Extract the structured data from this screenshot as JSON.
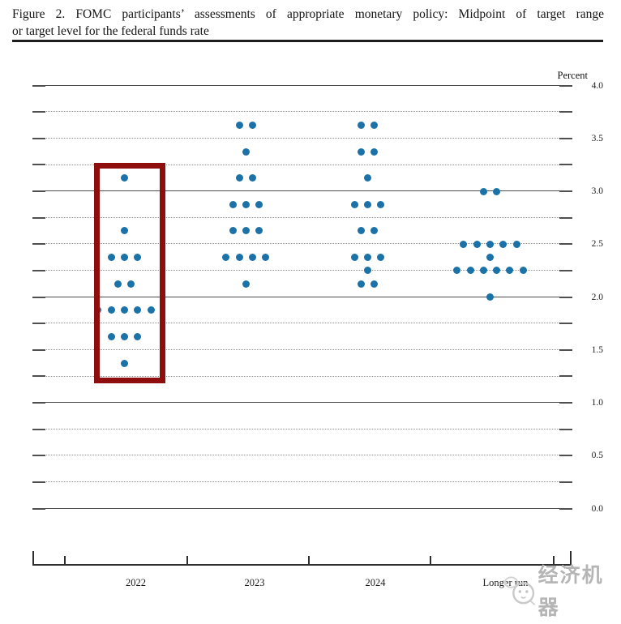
{
  "figure": {
    "title_line1": "Figure 2.  FOMC participants’ assessments of appropriate monetary policy:  Midpoint of target range",
    "title_line2": "or target level for the federal funds rate"
  },
  "axis": {
    "unit_label": "Percent",
    "ytick_labels": [
      "4.0",
      "3.5",
      "3.0",
      "2.5",
      "2.0",
      "1.5",
      "1.0",
      "0.5",
      "0.0"
    ],
    "x_labels": [
      "2022",
      "2023",
      "2024",
      "Longer run"
    ]
  },
  "watermark": {
    "text": "经济机器"
  },
  "chart_data": {
    "type": "scatter",
    "title": "Figure 2. FOMC participants’ assessments of appropriate monetary policy: Midpoint of target range or target level for the federal funds rate",
    "xlabel": "",
    "ylabel": "Percent",
    "ylim": [
      0.0,
      4.0
    ],
    "y_label_step": 0.5,
    "grid_step": 0.25,
    "grid": "on",
    "dot_color": "#1b72a8",
    "categories": [
      "2022",
      "2023",
      "2024",
      "Longer run"
    ],
    "series": [
      {
        "name": "2022",
        "dots": [
          {
            "rate": 3.125,
            "count": 1
          },
          {
            "rate": 2.625,
            "count": 1
          },
          {
            "rate": 2.375,
            "count": 3
          },
          {
            "rate": 2.125,
            "count": 2
          },
          {
            "rate": 1.875,
            "count": 5
          },
          {
            "rate": 1.625,
            "count": 3
          },
          {
            "rate": 1.375,
            "count": 1
          }
        ]
      },
      {
        "name": "2023",
        "dots": [
          {
            "rate": 3.625,
            "count": 2
          },
          {
            "rate": 3.375,
            "count": 1
          },
          {
            "rate": 3.125,
            "count": 2
          },
          {
            "rate": 2.875,
            "count": 3
          },
          {
            "rate": 2.625,
            "count": 3
          },
          {
            "rate": 2.375,
            "count": 4
          },
          {
            "rate": 2.125,
            "count": 1
          }
        ]
      },
      {
        "name": "2024",
        "dots": [
          {
            "rate": 3.625,
            "count": 2
          },
          {
            "rate": 3.375,
            "count": 2
          },
          {
            "rate": 3.125,
            "count": 1
          },
          {
            "rate": 2.875,
            "count": 3
          },
          {
            "rate": 2.625,
            "count": 2
          },
          {
            "rate": 2.375,
            "count": 3
          },
          {
            "rate": 2.25,
            "count": 1
          },
          {
            "rate": 2.125,
            "count": 2
          }
        ]
      },
      {
        "name": "Longer run",
        "dots": [
          {
            "rate": 3.0,
            "count": 2
          },
          {
            "rate": 2.5,
            "count": 5
          },
          {
            "rate": 2.375,
            "count": 1
          },
          {
            "rate": 2.25,
            "count": 6
          },
          {
            "rate": 2.0,
            "count": 1
          }
        ]
      }
    ],
    "highlight_box": {
      "category": "2022",
      "color": "#8e0e0e"
    }
  }
}
